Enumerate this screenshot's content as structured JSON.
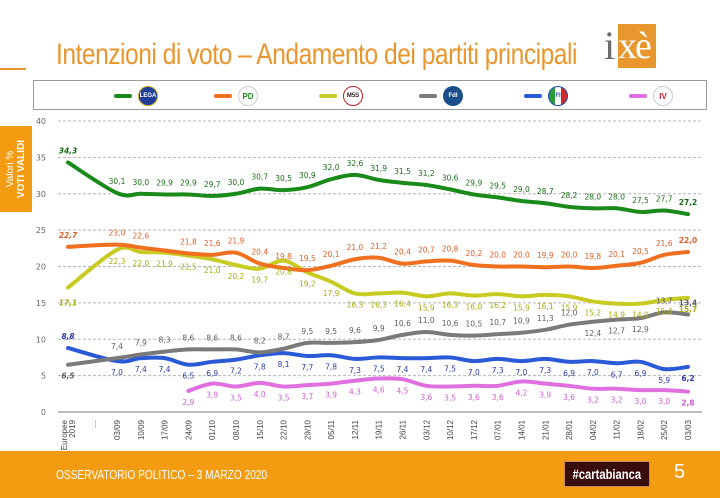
{
  "header": {
    "title": "Intenzioni di voto – Andamento dei partiti principali",
    "logo_text_i": "i",
    "logo_text_xe": "xè"
  },
  "legend": [
    {
      "party": "Lega",
      "logo_text": "LEGA",
      "color": "#1a8a1a",
      "logo_bg": "#1f3f9a"
    },
    {
      "party": "PD",
      "logo_text": "PD",
      "color": "#f07020",
      "logo_bg": "#ffffff"
    },
    {
      "party": "M5S",
      "logo_text": "M5S",
      "color": "#c8cc22",
      "logo_bg": "#ffffff"
    },
    {
      "party": "FdI",
      "logo_text": "FdI",
      "color": "#7a7a7a",
      "logo_bg": "#1a4f8a"
    },
    {
      "party": "FI",
      "logo_text": "FI",
      "color": "#2a5ad8",
      "logo_bg": "#1a4fb0"
    },
    {
      "party": "Italia Viva",
      "logo_text": "IV",
      "color": "#e070e0",
      "logo_bg": "#ffffff"
    }
  ],
  "side_tab": {
    "line1": "Valori %",
    "line2": "VOTI VALIDI"
  },
  "footer": {
    "text": "OSSERVATORIO POLITICO – 3 MARZO 2020",
    "hashtag": "#cartabianca",
    "page_number": "5"
  },
  "chart_data": {
    "type": "line",
    "title": "Intenzioni di voto – Andamento dei partiti principali",
    "xlabel": "",
    "ylabel": "Valori % VOTI VALIDI",
    "ylim": [
      0,
      40
    ],
    "yticks": [
      0,
      5,
      10,
      15,
      20,
      25,
      30,
      35,
      40
    ],
    "grid": true,
    "legend_position": "top",
    "categories": [
      "Europee 2019",
      "…",
      "03/09",
      "10/09",
      "17/09",
      "24/09",
      "01/10",
      "08/10",
      "15/10",
      "22/10",
      "29/10",
      "05/11",
      "12/11",
      "19/11",
      "26/11",
      "03/12",
      "10/12",
      "17/12",
      "07/01",
      "14/01",
      "21/01",
      "28/01",
      "04/02",
      "11/02",
      "18/02",
      "25/02",
      "03/03"
    ],
    "series": [
      {
        "name": "Lega",
        "color": "#1a8a1a",
        "values": [
          34.3,
          null,
          30.1,
          30.0,
          29.9,
          29.9,
          29.7,
          30.0,
          30.7,
          30.5,
          30.9,
          32.0,
          32.6,
          31.9,
          31.5,
          31.2,
          30.6,
          29.9,
          29.5,
          29.0,
          28.7,
          28.2,
          28.0,
          28.0,
          27.5,
          27.7,
          27.2
        ]
      },
      {
        "name": "PD",
        "color": "#f07020",
        "values": [
          22.7,
          null,
          23.0,
          22.6,
          22.2,
          21.8,
          21.6,
          21.9,
          20.4,
          19.8,
          19.5,
          20.1,
          21.0,
          21.2,
          20.4,
          20.7,
          20.8,
          20.2,
          20.0,
          20.0,
          19.9,
          20.0,
          19.8,
          20.1,
          20.5,
          21.6,
          22.0
        ]
      },
      {
        "name": "M5S",
        "color": "#c8cc22",
        "values": [
          17.1,
          null,
          22.3,
          22.0,
          21.9,
          21.5,
          21.0,
          20.2,
          19.7,
          20.8,
          19.2,
          17.9,
          16.3,
          16.3,
          16.4,
          15.9,
          16.3,
          16.0,
          16.2,
          15.9,
          16.1,
          15.9,
          15.2,
          14.9,
          14.9,
          15.4,
          15.7
        ]
      },
      {
        "name": "FdI",
        "color": "#7a7a7a",
        "values": [
          6.5,
          null,
          7.4,
          7.9,
          8.3,
          8.6,
          8.6,
          8.6,
          8.2,
          8.7,
          9.5,
          9.5,
          9.6,
          9.9,
          10.6,
          11.0,
          10.6,
          10.5,
          10.7,
          10.9,
          11.3,
          12.0,
          12.4,
          12.7,
          12.9,
          13.7,
          13.4
        ]
      },
      {
        "name": "FI",
        "color": "#2a5ad8",
        "values": [
          8.8,
          null,
          7.0,
          7.4,
          7.4,
          6.5,
          6.9,
          7.2,
          7.8,
          8.1,
          7.7,
          7.8,
          7.3,
          7.5,
          7.4,
          7.4,
          7.5,
          7.0,
          7.3,
          7.0,
          7.3,
          6.9,
          7.0,
          6.7,
          6.9,
          5.9,
          6.2
        ]
      },
      {
        "name": "Italia Viva",
        "color": "#e070e0",
        "values": [
          null,
          null,
          null,
          null,
          null,
          2.9,
          3.9,
          3.5,
          4.0,
          3.5,
          3.7,
          3.9,
          4.3,
          4.6,
          4.5,
          3.6,
          3.5,
          3.6,
          3.6,
          4.2,
          3.9,
          3.6,
          3.2,
          3.2,
          3.0,
          3.0,
          2.8
        ]
      }
    ],
    "label_hidden": {
      "PD": [
        4
      ]
    },
    "label_colors": {
      "Lega": "#1a6e1a",
      "PD": "#e0602a",
      "M5S": "#a8ac10",
      "FdI": "#5e5e5e",
      "FI": "#2a3aa8",
      "Italia Viva": "#d060d0"
    }
  }
}
